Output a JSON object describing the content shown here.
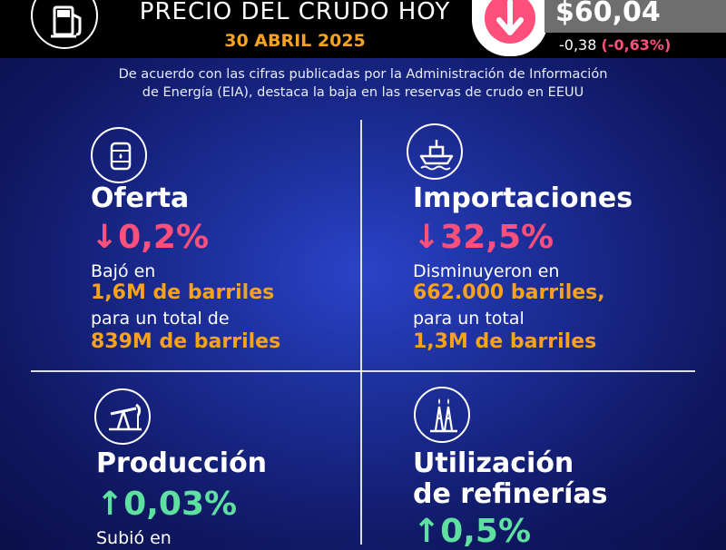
{
  "header": {
    "title": "PRECIO DEL CRUDO HOY",
    "date": "30 ABRIL 2025",
    "price": "$60,04",
    "change_abs": "-0,38",
    "change_pct": "(-0,63%)"
  },
  "intro": {
    "line1": "De acuerdo con las cifras publicadas por la Administración de Información",
    "line2": "de Energía (EIA), destaca la baja en las reservas de crudo en EEUU"
  },
  "cards": {
    "oferta": {
      "title": "Oferta",
      "metric": "↓0,2%",
      "line1": "Bajó en",
      "bold1": "1,6M de barriles",
      "line2": "para un total de",
      "bold2": "839M de barriles"
    },
    "importaciones": {
      "title": "Importaciones",
      "metric": "↓32,5%",
      "line1": "Disminuyeron en",
      "bold1": "662.000 barriles,",
      "line2": "para un total",
      "bold2": "1,3M de barriles"
    },
    "produccion": {
      "title": "Producción",
      "metric": "↑0,03%",
      "line1": "Subió en"
    },
    "refinerias": {
      "title1": "Utilización",
      "title2": "de refinerías",
      "metric": "↑0,5%"
    }
  },
  "colors": {
    "accent_orange": "#f7a21b",
    "down_pink": "#ff4f7b",
    "up_green": "#5ee0a0",
    "background": "#1a2a8f"
  },
  "icons": [
    "fuel-pump-icon",
    "down-arrow-icon",
    "oil-barrel-icon",
    "ship-icon",
    "pumpjack-icon",
    "oil-rig-icon"
  ]
}
